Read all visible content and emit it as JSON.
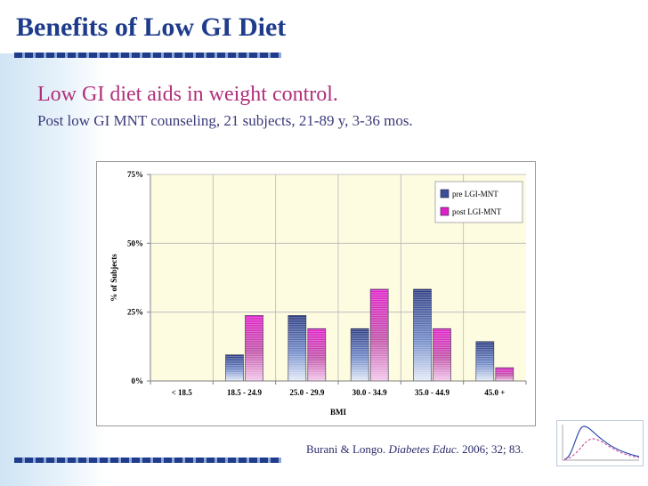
{
  "slide": {
    "title": "Benefits of Low GI Diet",
    "subtitle": "Low GI diet aids in weight control.",
    "description": "Post low GI MNT counseling, 21 subjects, 21-89 y, 3-36 mos.",
    "citation": {
      "authors": "Burani & Longo.",
      "journal": "Diabetes Educ.",
      "details": "2006; 32; 83."
    },
    "colors": {
      "title": "#1f3c8c",
      "subtitle": "#b0307a",
      "rule_dark": "#1f3c8c",
      "rule_light": "#8ea6d4"
    },
    "decoration_icon": "bell-curve-thumbnail-icon"
  },
  "chart_data": {
    "type": "bar",
    "xlabel": "BMI",
    "ylabel": "% of Subjects",
    "ylim": [
      0,
      75
    ],
    "yticks": [
      0,
      25,
      50,
      75
    ],
    "ytick_labels": [
      "0%",
      "25%",
      "50%",
      "75%"
    ],
    "categories": [
      "< 18.5",
      "18.5 - 24.9",
      "25.0 - 29.9",
      "30.0 - 34.9",
      "35.0 - 44.9",
      "45.0 +"
    ],
    "series": [
      {
        "name": "pre LGI-MNT",
        "values": [
          0,
          9.5,
          23.8,
          19.0,
          33.3,
          14.3
        ],
        "color": "#3a4f9a"
      },
      {
        "name": "post LGI-MNT",
        "values": [
          0,
          23.8,
          19.0,
          33.3,
          19.0,
          4.8
        ],
        "color": "#e020c8"
      }
    ],
    "grid": true,
    "legend_position": "top-right",
    "plot_background": "#fdfbe0"
  }
}
